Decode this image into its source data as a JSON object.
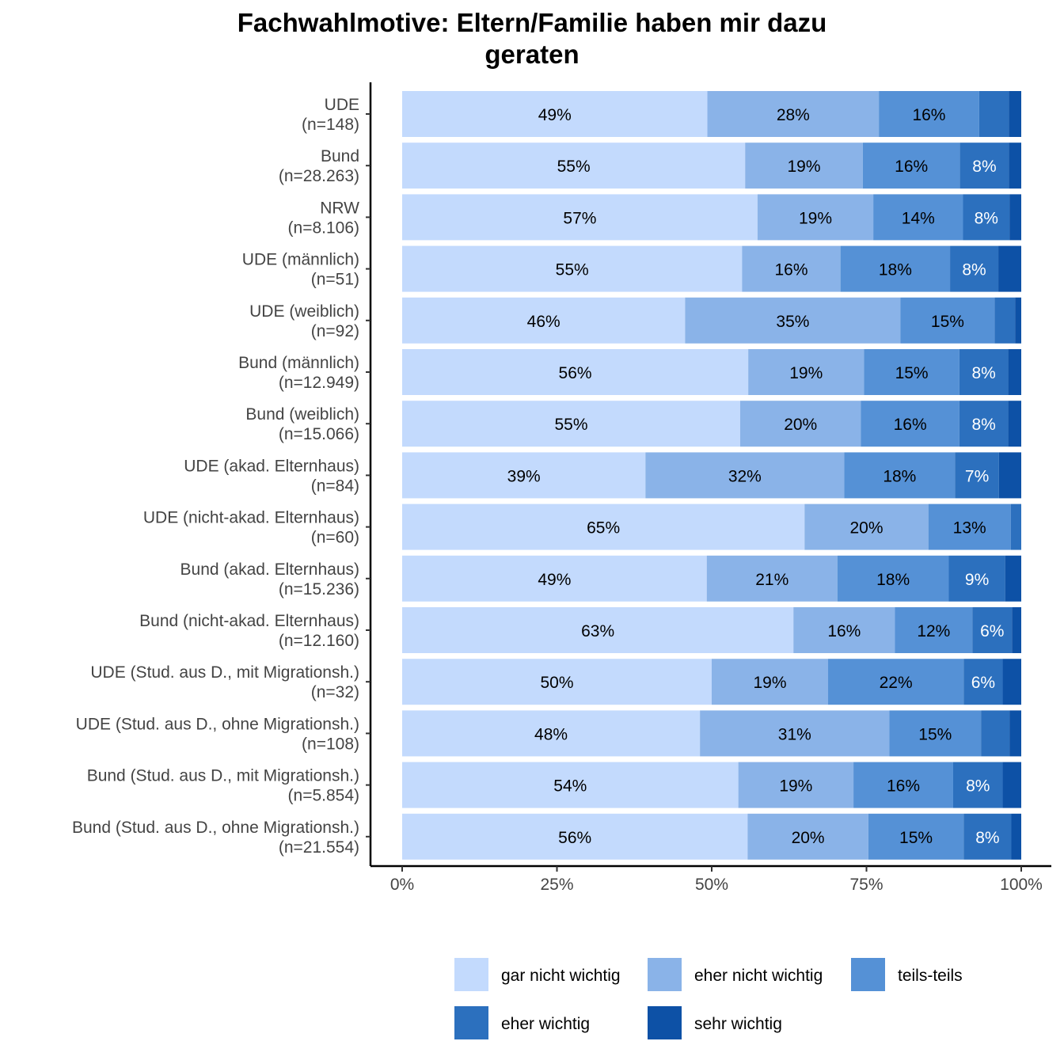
{
  "chart_data": {
    "type": "bar",
    "orientation": "horizontal",
    "stacked": "percent",
    "title": "Fachwahlmotive: Eltern/Familie haben mir dazu geraten",
    "title_lines": [
      "Fachwahlmotive: Eltern/Familie haben mir dazu",
      "geraten"
    ],
    "xlabel": "",
    "ylabel": "",
    "xlim": [
      0,
      100
    ],
    "x_ticks": [
      "0%",
      "25%",
      "50%",
      "75%",
      "100%"
    ],
    "legend_position": "bottom",
    "grid": false,
    "categories": [
      [
        "UDE",
        "(n=148)"
      ],
      [
        "Bund",
        "(n=28.263)"
      ],
      [
        "NRW",
        "(n=8.106)"
      ],
      [
        "UDE (männlich)",
        "(n=51)"
      ],
      [
        "UDE (weiblich)",
        "(n=92)"
      ],
      [
        "Bund (männlich)",
        "(n=12.949)"
      ],
      [
        "Bund (weiblich)",
        "(n=15.066)"
      ],
      [
        "UDE (akad. Elternhaus)",
        "(n=84)"
      ],
      [
        "UDE (nicht-akad. Elternhaus)",
        "(n=60)"
      ],
      [
        "Bund (akad. Elternhaus)",
        "(n=15.236)"
      ],
      [
        "Bund (nicht-akad. Elternhaus)",
        "(n=12.160)"
      ],
      [
        "UDE (Stud. aus D., mit Migrationsh.)",
        "(n=32)"
      ],
      [
        "UDE (Stud. aus D., ohne Migrationsh.)",
        "(n=108)"
      ],
      [
        "Bund (Stud. aus D., mit Migrationsh.)",
        "(n=5.854)"
      ],
      [
        "Bund (Stud. aus D., ohne Migrationsh.)",
        "(n=21.554)"
      ]
    ],
    "series": [
      {
        "name": "gar nicht wichtig",
        "color": "#c3dafd",
        "label_color": "#000000",
        "values": [
          49.3,
          55.4,
          57.4,
          54.9,
          45.7,
          55.9,
          54.6,
          39.3,
          65.0,
          49.2,
          63.2,
          50.0,
          48.1,
          54.3,
          55.8
        ],
        "labels": [
          "49%",
          "55%",
          "57%",
          "55%",
          "46%",
          "56%",
          "55%",
          "39%",
          "65%",
          "49%",
          "63%",
          "50%",
          "48%",
          "54%",
          "56%"
        ]
      },
      {
        "name": "eher nicht wichtig",
        "color": "#8ab3e8",
        "label_color": "#000000",
        "values": [
          27.7,
          19.0,
          18.7,
          15.9,
          34.8,
          18.7,
          19.5,
          32.1,
          20.0,
          21.1,
          16.4,
          18.8,
          30.6,
          18.6,
          19.5
        ],
        "labels": [
          "28%",
          "19%",
          "19%",
          "16%",
          "35%",
          "19%",
          "20%",
          "32%",
          "20%",
          "21%",
          "16%",
          "19%",
          "31%",
          "19%",
          "20%"
        ]
      },
      {
        "name": "teils-teils",
        "color": "#5591d6",
        "label_color": "#000000",
        "values": [
          16.2,
          15.7,
          14.5,
          17.7,
          15.2,
          15.4,
          15.9,
          17.9,
          13.3,
          18.0,
          12.5,
          21.9,
          14.8,
          16.1,
          15.4
        ],
        "labels": [
          "16%",
          "16%",
          "14%",
          "18%",
          "15%",
          "15%",
          "16%",
          "18%",
          "13%",
          "18%",
          "12%",
          "22%",
          "15%",
          "16%",
          "15%"
        ]
      },
      {
        "name": "eher wichtig",
        "color": "#2c70be",
        "label_color": "#ffffff",
        "values": [
          4.8,
          7.9,
          7.5,
          7.8,
          3.3,
          7.9,
          7.9,
          7.1,
          1.7,
          9.1,
          6.4,
          6.3,
          4.6,
          8.0,
          7.7
        ],
        "labels": [
          "",
          "8%",
          "8%",
          "8%",
          "",
          "8%",
          "8%",
          "7%",
          "",
          "9%",
          "6%",
          "6%",
          "",
          "8%",
          "8%"
        ]
      },
      {
        "name": "sehr wichtig",
        "color": "#0d51a6",
        "label_color": "#ffffff",
        "values": [
          2.0,
          2.0,
          1.9,
          3.7,
          1.0,
          2.1,
          2.1,
          3.6,
          0.0,
          2.6,
          1.5,
          3.0,
          1.9,
          3.0,
          1.6
        ],
        "labels": [
          "",
          "",
          "",
          "",
          "",
          "",
          "",
          "",
          "",
          "",
          "",
          "",
          "",
          "",
          ""
        ]
      }
    ]
  }
}
